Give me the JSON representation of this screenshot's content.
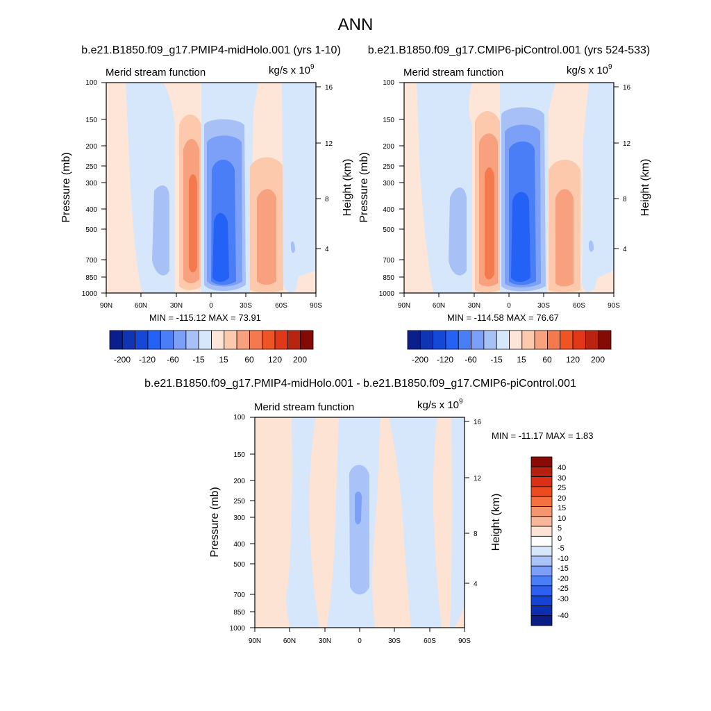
{
  "page": {
    "title": "ANN"
  },
  "colors": {
    "accent_blue": "#1f5fff",
    "accent_red": "#f15a24",
    "axis": "#000000"
  },
  "panels": [
    {
      "id": "midholo",
      "run_title": "b.e21.B1850.f09_g17.PMIP4-midHolo.001 (yrs 1-10)",
      "var_label": "Merid stream function",
      "units": "kg/s x 10",
      "units_exp": "9",
      "ylabel": "Pressure (mb)",
      "ylabel_right": "Height (km)",
      "min_max_text": "MIN = -115.12  MAX =  73.91"
    },
    {
      "id": "picontrol",
      "run_title": "b.e21.B1850.f09_g17.CMIP6-piControl.001 (yrs 524-533)",
      "var_label": "Merid stream function",
      "units": "kg/s x 10",
      "units_exp": "9",
      "ylabel": "Pressure (mb)",
      "ylabel_right": "Height (km)",
      "min_max_text": "MIN = -114.58  MAX =  76.67"
    },
    {
      "id": "difference",
      "run_title": "b.e21.B1850.f09_g17.PMIP4-midHolo.001 - b.e21.B1850.f09_g17.CMIP6-piControl.001",
      "var_label": "Merid stream function",
      "units": "kg/s x 10",
      "units_exp": "9",
      "ylabel": "Pressure (mb)",
      "ylabel_right": "Height (km)",
      "min_max_text": "MIN = -11.17  MAX =   1.83"
    }
  ],
  "axes": {
    "x_ticks": [
      "90N",
      "60N",
      "30N",
      "0",
      "30S",
      "60S",
      "90S"
    ],
    "pressure_ticks": [
      "100",
      "150",
      "200",
      "250",
      "300",
      "400",
      "500",
      "700",
      "850",
      "1000"
    ],
    "height_ticks": [
      "16",
      "12",
      "8",
      "4"
    ]
  },
  "colorbar_main": {
    "labels": [
      "-200",
      "-120",
      "-60",
      "-15",
      "15",
      "60",
      "120",
      "200"
    ],
    "colors": [
      "#0a1e8c",
      "#0f34b4",
      "#1548d7",
      "#2461f5",
      "#4a7ef6",
      "#7c9ff7",
      "#a7c1f7",
      "#d6e6fb",
      "#fde6d8",
      "#fcc9ad",
      "#f7a17e",
      "#f47a4e",
      "#ef5424",
      "#e1381a",
      "#b82410",
      "#840a05"
    ]
  },
  "colorbar_diff": {
    "labels": [
      "40",
      "30",
      "25",
      "20",
      "15",
      "10",
      "5",
      "0",
      "-5",
      "-10",
      "-15",
      "-20",
      "-25",
      "-30",
      "-40"
    ],
    "colors": [
      "#8a0a06",
      "#b71f10",
      "#db3016",
      "#ef4a1f",
      "#f5713f",
      "#f69670",
      "#f8b79a",
      "#fde3d3",
      "#ffffff",
      "#d6e6fb",
      "#a9c3f9",
      "#7d9ff7",
      "#4a7ef6",
      "#2d60f2",
      "#1443d5",
      "#0c2eb2",
      "#0a1c86"
    ]
  },
  "chart_data": [
    {
      "type": "heatmap",
      "title": "b.e21.B1850.f09_g17.PMIP4-midHolo.001 (yrs 1-10)",
      "subtitle": "Merid stream function",
      "units": "kg/s x 10^9",
      "xlabel": "",
      "ylabel": "Pressure (mb)",
      "ylabel_right": "Height (km)",
      "x_ticks": [
        "90N",
        "60N",
        "30N",
        "0",
        "30S",
        "60S",
        "90S"
      ],
      "y_ticks": [
        100,
        150,
        200,
        250,
        300,
        400,
        500,
        700,
        850,
        1000
      ],
      "y_scale": "log",
      "y_reversed": true,
      "ylim": [
        100,
        1000
      ],
      "min": -115.12,
      "max": 73.91,
      "colorbar_labels": [
        -200,
        -120,
        -60,
        -15,
        15,
        60,
        120,
        200
      ],
      "cells": [
        {
          "lat": 80,
          "p_top": 100,
          "p_bot": 1000,
          "v": 3
        },
        {
          "lat": 62,
          "p_top": 100,
          "p_bot": 1000,
          "v": -5
        },
        {
          "lat": 45,
          "p_top": 300,
          "p_bot": 850,
          "v": -20
        },
        {
          "lat": 18,
          "p_top": 150,
          "p_bot": 1000,
          "v": 20
        },
        {
          "lat": 18,
          "p_top": 250,
          "p_bot": 850,
          "v": 60
        },
        {
          "lat": 18,
          "p_top": 280,
          "p_bot": 800,
          "v": 73
        },
        {
          "lat": -12,
          "p_top": 150,
          "p_bot": 1000,
          "v": -15
        },
        {
          "lat": -12,
          "p_top": 230,
          "p_bot": 900,
          "v": -60
        },
        {
          "lat": -12,
          "p_top": 450,
          "p_bot": 850,
          "v": -115
        },
        {
          "lat": -45,
          "p_top": 230,
          "p_bot": 1000,
          "v": 15
        },
        {
          "lat": -45,
          "p_top": 330,
          "p_bot": 850,
          "v": 40
        },
        {
          "lat": -72,
          "p_top": 100,
          "p_bot": 1000,
          "v": -5
        }
      ]
    },
    {
      "type": "heatmap",
      "title": "b.e21.B1850.f09_g17.CMIP6-piControl.001 (yrs 524-533)",
      "subtitle": "Merid stream function",
      "units": "kg/s x 10^9",
      "xlabel": "",
      "ylabel": "Pressure (mb)",
      "ylabel_right": "Height (km)",
      "x_ticks": [
        "90N",
        "60N",
        "30N",
        "0",
        "30S",
        "60S",
        "90S"
      ],
      "y_ticks": [
        100,
        150,
        200,
        250,
        300,
        400,
        500,
        700,
        850,
        1000
      ],
      "y_scale": "log",
      "y_reversed": true,
      "ylim": [
        100,
        1000
      ],
      "min": -114.58,
      "max": 76.67,
      "colorbar_labels": [
        -200,
        -120,
        -60,
        -15,
        15,
        60,
        120,
        200
      ],
      "cells": [
        {
          "lat": 80,
          "p_top": 100,
          "p_bot": 1000,
          "v": 3
        },
        {
          "lat": 62,
          "p_top": 100,
          "p_bot": 1000,
          "v": -5
        },
        {
          "lat": 45,
          "p_top": 300,
          "p_bot": 850,
          "v": -20
        },
        {
          "lat": 18,
          "p_top": 150,
          "p_bot": 1000,
          "v": 20
        },
        {
          "lat": 18,
          "p_top": 250,
          "p_bot": 850,
          "v": 60
        },
        {
          "lat": 18,
          "p_top": 260,
          "p_bot": 800,
          "v": 76
        },
        {
          "lat": -12,
          "p_top": 150,
          "p_bot": 1000,
          "v": -15
        },
        {
          "lat": -12,
          "p_top": 200,
          "p_bot": 900,
          "v": -60
        },
        {
          "lat": -12,
          "p_top": 300,
          "p_bot": 850,
          "v": -114
        },
        {
          "lat": -45,
          "p_top": 230,
          "p_bot": 1000,
          "v": 15
        },
        {
          "lat": -45,
          "p_top": 300,
          "p_bot": 850,
          "v": 40
        },
        {
          "lat": -72,
          "p_top": 100,
          "p_bot": 1000,
          "v": -5
        }
      ]
    },
    {
      "type": "heatmap",
      "title": "b.e21.B1850.f09_g17.PMIP4-midHolo.001 - b.e21.B1850.f09_g17.CMIP6-piControl.001",
      "subtitle": "Merid stream function",
      "units": "kg/s x 10^9",
      "xlabel": "",
      "ylabel": "Pressure (mb)",
      "ylabel_right": "Height (km)",
      "x_ticks": [
        "90N",
        "60N",
        "30N",
        "0",
        "30S",
        "60S",
        "90S"
      ],
      "y_ticks": [
        100,
        150,
        200,
        250,
        300,
        400,
        500,
        700,
        850,
        1000
      ],
      "y_scale": "log",
      "y_reversed": true,
      "ylim": [
        100,
        1000
      ],
      "min": -11.17,
      "max": 1.83,
      "colorbar_labels": [
        40,
        30,
        25,
        20,
        15,
        10,
        5,
        0,
        -5,
        -10,
        -15,
        -20,
        -25,
        -30,
        -40
      ],
      "cells": [
        {
          "lat": 70,
          "p_top": 100,
          "p_bot": 1000,
          "v": 1
        },
        {
          "lat": 50,
          "p_top": 100,
          "p_bot": 1000,
          "v": -2
        },
        {
          "lat": 25,
          "p_top": 100,
          "p_bot": 1000,
          "v": 1
        },
        {
          "lat": 2,
          "p_top": 100,
          "p_bot": 1000,
          "v": -3
        },
        {
          "lat": 2,
          "p_top": 170,
          "p_bot": 650,
          "v": -7
        },
        {
          "lat": 2,
          "p_top": 240,
          "p_bot": 330,
          "v": -11
        },
        {
          "lat": -22,
          "p_top": 100,
          "p_bot": 1000,
          "v": 1
        },
        {
          "lat": -45,
          "p_top": 100,
          "p_bot": 1000,
          "v": -2
        },
        {
          "lat": -70,
          "p_top": 100,
          "p_bot": 1000,
          "v": 1
        }
      ]
    }
  ]
}
